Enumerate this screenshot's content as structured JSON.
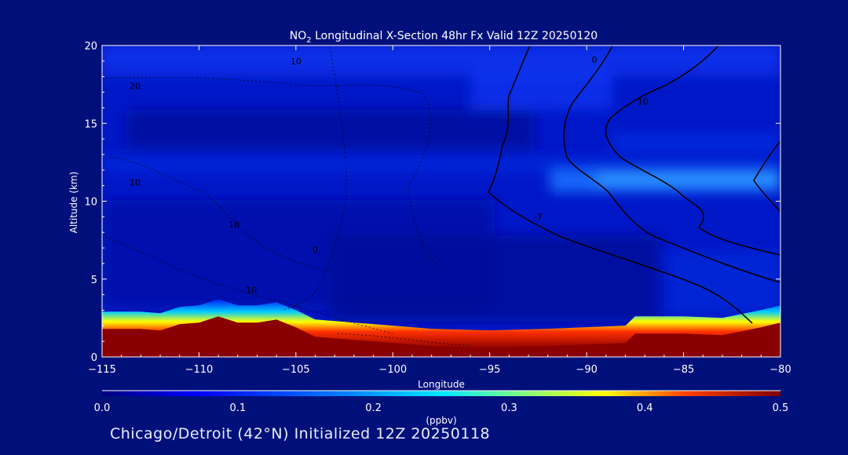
{
  "chart_data": {
    "type": "heatmap",
    "title": {
      "prefix": "NO",
      "subscript": "2",
      "suffix": " Longitudinal X-Section 48hr  Fx Valid 12Z 20250120"
    },
    "xlabel": "Longitude",
    "ylabel": "Altitude (km)",
    "xlim": [
      -115,
      -80
    ],
    "ylim": [
      0,
      20
    ],
    "x_ticks": [
      -115,
      -110,
      -105,
      -100,
      -95,
      -90,
      -85,
      -80
    ],
    "x_tick_labels": [
      "−115",
      "−110",
      "−105",
      "−100",
      "−95",
      "−90",
      "−85",
      "−80"
    ],
    "y_ticks": [
      0,
      5,
      10,
      15,
      20
    ],
    "y_tick_labels": [
      "0",
      "5",
      "10",
      "15",
      "20"
    ],
    "colorbar": {
      "label": "(ppbv)",
      "ticks": [
        0.0,
        0.1,
        0.2,
        0.3,
        0.4,
        0.5
      ],
      "tick_labels": [
        "0.0",
        "0.1",
        "0.2",
        "0.3",
        "0.4",
        "0.5"
      ],
      "range": [
        0,
        0.5
      ]
    },
    "terrain_top_km": {
      "lon": [
        -115,
        -113,
        -112,
        -111,
        -110,
        -109,
        -108,
        -107,
        -106,
        -105,
        -104,
        -102,
        -100,
        -98,
        -95,
        -92,
        -90,
        -88,
        -87.5,
        -85,
        -83,
        -81,
        -80
      ],
      "alt": [
        1.8,
        1.8,
        1.7,
        2.1,
        2.2,
        2.6,
        2.2,
        2.2,
        2.4,
        1.9,
        1.3,
        1.1,
        0.9,
        0.7,
        0.6,
        0.7,
        0.8,
        0.9,
        1.5,
        1.5,
        1.4,
        1.9,
        2.2
      ]
    },
    "surface_layer": {
      "lon": [
        -115,
        -112,
        -110,
        -109,
        -108,
        -106,
        -105,
        -104,
        -102,
        -100,
        -95,
        -90,
        -88,
        -87.5,
        -85,
        -82,
        -80
      ],
      "value": [
        0.5,
        0.5,
        0.5,
        0.5,
        0.45,
        0.5,
        0.5,
        0.5,
        0.5,
        0.45,
        0.4,
        0.5,
        0.5,
        0.5,
        0.5,
        0.5,
        0.5
      ]
    },
    "contour_labels": [
      {
        "text": "10",
        "lon": -105,
        "alt": 18.8
      },
      {
        "text": "20",
        "lon": -113.3,
        "alt": 17.2
      },
      {
        "text": "10",
        "lon": -113.3,
        "alt": 11.0
      },
      {
        "text": "10",
        "lon": -108.2,
        "alt": 8.3
      },
      {
        "text": "0",
        "lon": -104,
        "alt": 6.7
      },
      {
        "text": "10",
        "lon": -107.3,
        "alt": 4.1
      },
      {
        "text": "0",
        "lon": -89.6,
        "alt": 18.9
      },
      {
        "text": "10",
        "lon": -87.1,
        "alt": 16.2
      },
      {
        "text": "-7",
        "lon": -92.5,
        "alt": 8.8
      }
    ],
    "footer": "Chicago/Detroit (42°N) Initialized 12Z 20250118"
  }
}
